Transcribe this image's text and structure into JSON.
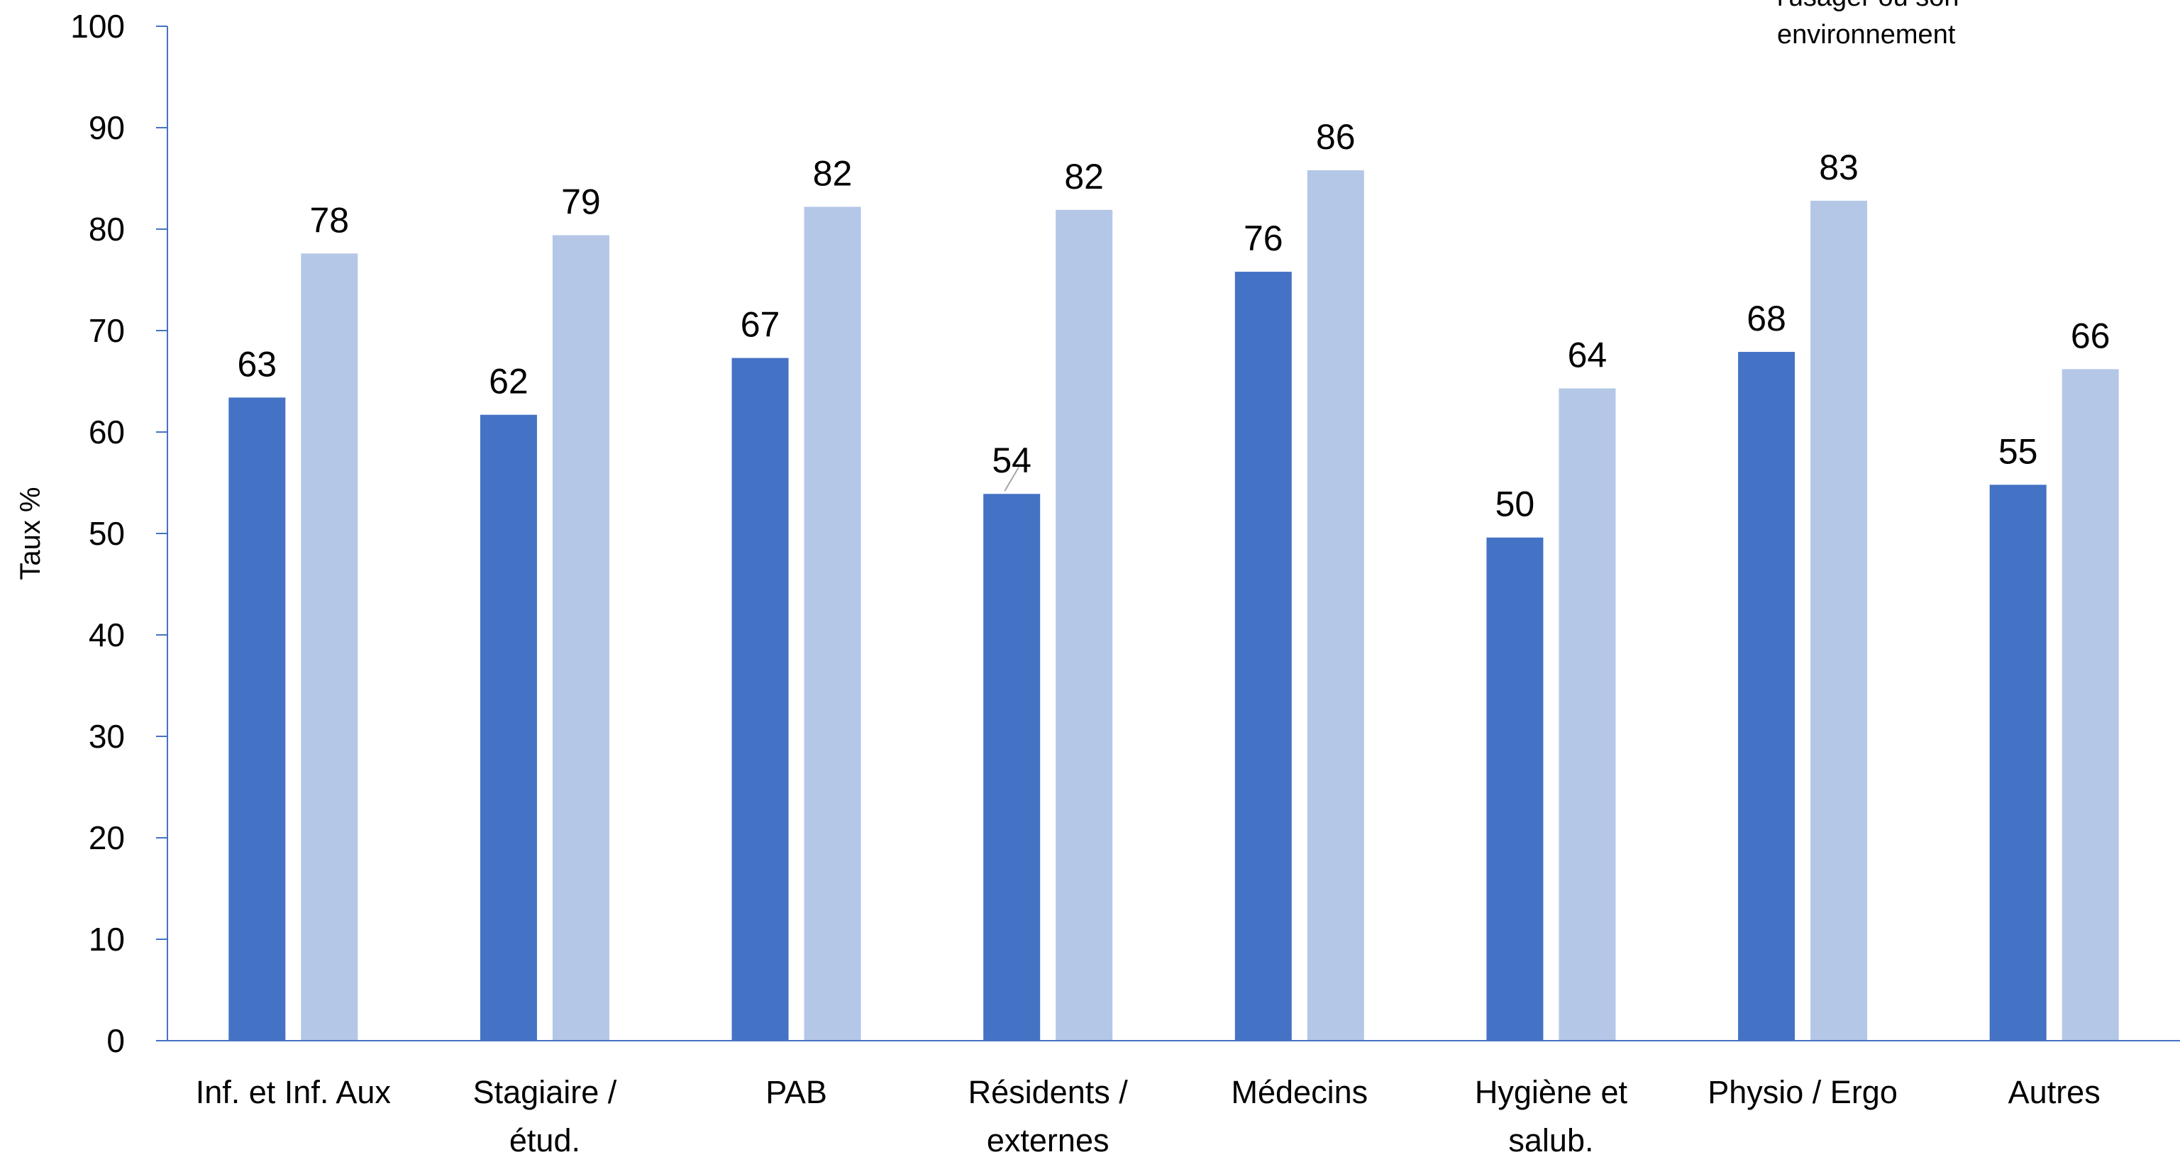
{
  "chart_data": {
    "type": "bar",
    "ylabel": "Taux %",
    "ylim": [
      0,
      100
    ],
    "yticks": [
      "0",
      "10",
      "20",
      "30",
      "40",
      "50",
      "60",
      "70",
      "80",
      "90",
      "100"
    ],
    "categories": [
      [
        "Inf. et Inf. Aux"
      ],
      [
        "Stagiaire /",
        "étud."
      ],
      [
        "PAB"
      ],
      [
        "Résidents /",
        "externes"
      ],
      [
        "Médecins"
      ],
      [
        "Hygiène et",
        "salub."
      ],
      [
        "Physio / Ergo"
      ],
      [
        "Autres"
      ]
    ],
    "series": [
      {
        "color": "#4472C4",
        "values": [
          63.4,
          61.7,
          67.3,
          53.9,
          75.8,
          49.6,
          67.9,
          54.8
        ],
        "labels": [
          "63",
          "62",
          "67",
          "54",
          "76",
          "50",
          "68",
          "55"
        ]
      },
      {
        "color": "#B4C7E7",
        "values": [
          77.6,
          79.4,
          82.2,
          81.9,
          85.8,
          64.3,
          82.8,
          66.2
        ],
        "labels": [
          "78",
          "79",
          "82",
          "82",
          "86",
          "64",
          "83",
          "66"
        ]
      }
    ],
    "legend_fragment": [
      "l'usager ou son",
      "environnement"
    ],
    "axis_color": "#4472C4",
    "grid": false
  }
}
